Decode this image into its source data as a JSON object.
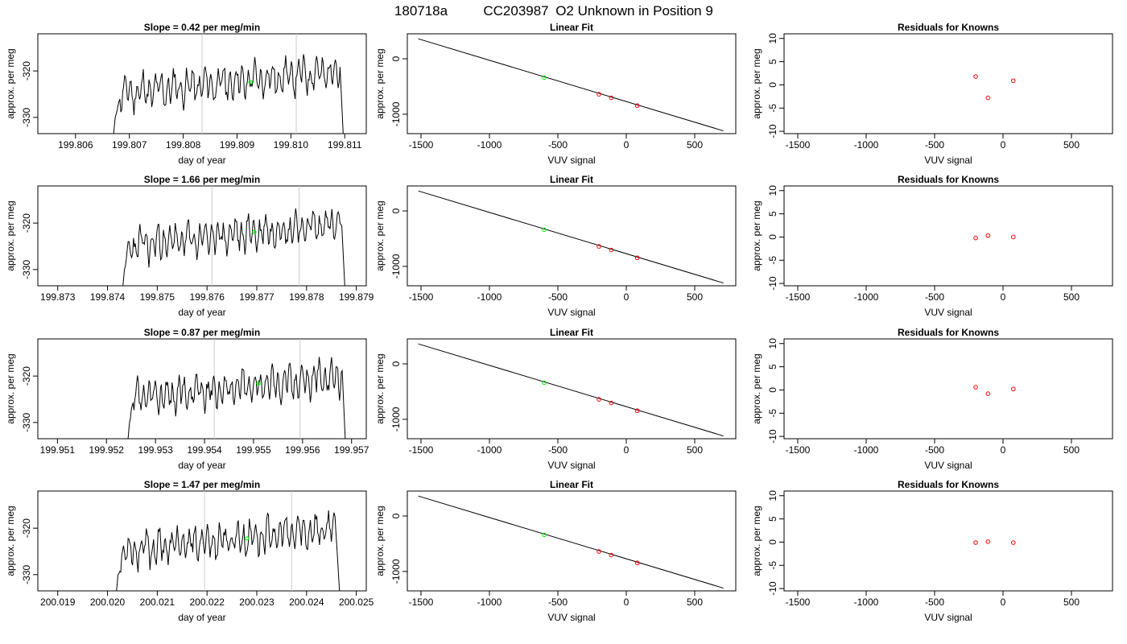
{
  "figure": {
    "title_parts": [
      "180718a",
      "CC203987",
      "O2 Unknown in Position  9"
    ]
  },
  "colors": {
    "trace": "#000000",
    "vline": "#cccccc",
    "fit_line": "#000000",
    "known_points": "#ff0000",
    "unknown_point": "#00ff00",
    "residual_points": "#ff0000"
  },
  "labels": {
    "time_ylabel": "approx. per meg",
    "time_xlabel": "day of year",
    "fit_title": "Linear Fit",
    "fit_ylabel": "approx. per meg",
    "fit_xlabel": "VUV signal",
    "resid_title": "Residuals for Knowns",
    "resid_ylabel": "approx. per meg",
    "resid_xlabel": "VUV signal"
  },
  "chart_data": [
    {
      "type": "line",
      "title": "Slope =  0.42  per meg/min",
      "xticks": [
        "199.806",
        "199.807",
        "199.808",
        "199.809",
        "199.810",
        "199.811"
      ],
      "yticks": [
        "-330",
        "-320"
      ],
      "xlim": [
        199.8053,
        199.8114
      ],
      "ylim": [
        -333.5,
        -312
      ],
      "vlines": [
        199.80835,
        199.8101
      ],
      "trace_start": 199.80665,
      "trace_end": 199.811,
      "green_point": [
        199.80925,
        -322.4
      ],
      "seed": 11
    },
    {
      "type": "line",
      "title": "Slope =  1.66  per meg/min",
      "xticks": [
        "199.873",
        "199.874",
        "199.875",
        "199.876",
        "199.877",
        "199.878",
        "199.879"
      ],
      "yticks": [
        "-330",
        "-320"
      ],
      "xlim": [
        199.8726,
        199.8792
      ],
      "ylim": [
        -333.5,
        -312
      ],
      "vlines": [
        199.8761,
        199.87785
      ],
      "trace_start": 199.87425,
      "trace_end": 199.8788,
      "green_point": [
        199.87695,
        -321.9
      ],
      "seed": 23
    },
    {
      "type": "line",
      "title": "Slope =  0.87  per meg/min",
      "xticks": [
        "199.951",
        "199.952",
        "199.953",
        "199.954",
        "199.955",
        "199.956",
        "199.957"
      ],
      "yticks": [
        "-330",
        "-320"
      ],
      "xlim": [
        199.9506,
        199.9573
      ],
      "ylim": [
        -333.5,
        -312
      ],
      "vlines": [
        199.9542,
        199.95595
      ],
      "trace_start": 199.95238,
      "trace_end": 199.9569,
      "green_point": [
        199.9551,
        -321.6
      ],
      "seed": 37
    },
    {
      "type": "line",
      "title": "Slope =  1.47  per meg/min",
      "xticks": [
        "200.019",
        "200.020",
        "200.021",
        "200.022",
        "200.023",
        "200.024",
        "200.025"
      ],
      "yticks": [
        "-330",
        "-320"
      ],
      "xlim": [
        200.0186,
        200.0252
      ],
      "ylim": [
        -333.5,
        -312
      ],
      "vlines": [
        200.02195,
        200.0237
      ],
      "trace_start": 200.02012,
      "trace_end": 200.0247,
      "green_point": [
        200.0228,
        -322.2
      ],
      "seed": 53
    },
    {
      "type": "scatter",
      "title": "Linear Fit",
      "xticks": [
        -1500,
        -1000,
        -500,
        0,
        500
      ],
      "yticks": [
        -1000,
        0
      ],
      "xlim": [
        -1600,
        800
      ],
      "ylim": [
        -1350,
        450
      ],
      "fit_line": [
        [
          -1520,
          360
        ],
        [
          710,
          -1300
        ]
      ],
      "known_points": [
        [
          -200,
          -640
        ],
        [
          -110,
          -705
        ],
        [
          80,
          -845
        ]
      ],
      "unknown_point": [
        -600,
        -340
      ]
    },
    {
      "type": "scatter",
      "title": "Linear Fit",
      "xticks": [
        -1500,
        -1000,
        -500,
        0,
        500
      ],
      "yticks": [
        -1000,
        0
      ],
      "xlim": [
        -1600,
        800
      ],
      "ylim": [
        -1350,
        450
      ],
      "fit_line": [
        [
          -1520,
          360
        ],
        [
          710,
          -1300
        ]
      ],
      "known_points": [
        [
          -200,
          -640
        ],
        [
          -110,
          -705
        ],
        [
          80,
          -845
        ]
      ],
      "unknown_point": [
        -600,
        -340
      ]
    },
    {
      "type": "scatter",
      "title": "Linear Fit",
      "xticks": [
        -1500,
        -1000,
        -500,
        0,
        500
      ],
      "yticks": [
        -1000,
        0
      ],
      "xlim": [
        -1600,
        800
      ],
      "ylim": [
        -1350,
        450
      ],
      "fit_line": [
        [
          -1520,
          360
        ],
        [
          710,
          -1300
        ]
      ],
      "known_points": [
        [
          -200,
          -640
        ],
        [
          -110,
          -705
        ],
        [
          80,
          -845
        ]
      ],
      "unknown_point": [
        -600,
        -340
      ]
    },
    {
      "type": "scatter",
      "title": "Linear Fit",
      "xticks": [
        -1500,
        -1000,
        -500,
        0,
        500
      ],
      "yticks": [
        -1000,
        0
      ],
      "xlim": [
        -1600,
        800
      ],
      "ylim": [
        -1350,
        450
      ],
      "fit_line": [
        [
          -1520,
          360
        ],
        [
          710,
          -1300
        ]
      ],
      "known_points": [
        [
          -200,
          -640
        ],
        [
          -110,
          -705
        ],
        [
          80,
          -845
        ]
      ],
      "unknown_point": [
        -600,
        -340
      ]
    },
    {
      "type": "scatter",
      "title": "Residuals for Knowns",
      "xticks": [
        -1500,
        -1000,
        -500,
        0,
        500
      ],
      "yticks": [
        -10,
        -5,
        0,
        5,
        10
      ],
      "xlim": [
        -1600,
        800
      ],
      "ylim": [
        -10.5,
        11
      ],
      "points": [
        [
          -200,
          1.8
        ],
        [
          -110,
          -2.8
        ],
        [
          75,
          0.9
        ]
      ]
    },
    {
      "type": "scatter",
      "title": "Residuals for Knowns",
      "xticks": [
        -1500,
        -1000,
        -500,
        0,
        500
      ],
      "yticks": [
        -10,
        -5,
        0,
        5,
        10
      ],
      "xlim": [
        -1600,
        800
      ],
      "ylim": [
        -10.5,
        11
      ],
      "points": [
        [
          -200,
          -0.2
        ],
        [
          -110,
          0.3
        ],
        [
          75,
          0.0
        ]
      ]
    },
    {
      "type": "scatter",
      "title": "Residuals for Knowns",
      "xticks": [
        -1500,
        -1000,
        -500,
        0,
        500
      ],
      "yticks": [
        -10,
        -5,
        0,
        5,
        10
      ],
      "xlim": [
        -1600,
        800
      ],
      "ylim": [
        -10.5,
        11
      ],
      "points": [
        [
          -200,
          0.6
        ],
        [
          -110,
          -0.8
        ],
        [
          75,
          0.2
        ]
      ]
    },
    {
      "type": "scatter",
      "title": "Residuals for Knowns",
      "xticks": [
        -1500,
        -1000,
        -500,
        0,
        500
      ],
      "yticks": [
        -10,
        -5,
        0,
        5,
        10
      ],
      "xlim": [
        -1600,
        800
      ],
      "ylim": [
        -10.5,
        11
      ],
      "points": [
        [
          -200,
          -0.1
        ],
        [
          -110,
          0.1
        ],
        [
          75,
          -0.1
        ]
      ]
    }
  ]
}
